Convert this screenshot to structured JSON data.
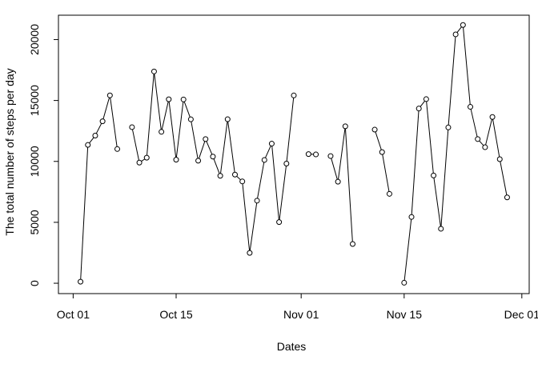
{
  "chart_data": {
    "type": "line",
    "title": "",
    "xlabel": "Dates",
    "ylabel": "The total number of steps per day",
    "x_tick_labels": [
      {
        "date": "2012-10-01",
        "label": "Oct 01"
      },
      {
        "date": "2012-10-15",
        "label": "Oct 15"
      },
      {
        "date": "2012-11-01",
        "label": "Nov 01"
      },
      {
        "date": "2012-11-15",
        "label": "Nov 15"
      },
      {
        "date": "2012-12-01",
        "label": "Dec 01"
      }
    ],
    "y_ticks": [
      0,
      5000,
      10000,
      15000,
      20000
    ],
    "xlim": [
      "2012-09-29",
      "2012-12-02"
    ],
    "ylim": [
      -850,
      22000
    ],
    "marker": "open-circle",
    "line_color": "#000000",
    "grid": false,
    "series": [
      {
        "points": [
          [
            "2012-10-02",
            126
          ],
          [
            "2012-10-03",
            11352
          ],
          [
            "2012-10-04",
            12116
          ],
          [
            "2012-10-05",
            13294
          ],
          [
            "2012-10-06",
            15420
          ],
          [
            "2012-10-07",
            11015
          ],
          [
            "2012-10-08",
            null
          ],
          [
            "2012-10-09",
            12811
          ],
          [
            "2012-10-10",
            9900
          ],
          [
            "2012-10-11",
            10304
          ],
          [
            "2012-10-12",
            17382
          ],
          [
            "2012-10-13",
            12426
          ],
          [
            "2012-10-14",
            15098
          ],
          [
            "2012-10-15",
            10139
          ],
          [
            "2012-10-16",
            15084
          ],
          [
            "2012-10-17",
            13452
          ],
          [
            "2012-10-18",
            10056
          ],
          [
            "2012-10-19",
            11829
          ],
          [
            "2012-10-20",
            10395
          ],
          [
            "2012-10-21",
            8821
          ],
          [
            "2012-10-22",
            13460
          ],
          [
            "2012-10-23",
            8918
          ],
          [
            "2012-10-24",
            8355
          ],
          [
            "2012-10-25",
            2492
          ],
          [
            "2012-10-26",
            6778
          ],
          [
            "2012-10-27",
            10119
          ],
          [
            "2012-10-28",
            11458
          ],
          [
            "2012-10-29",
            5018
          ],
          [
            "2012-10-30",
            9819
          ],
          [
            "2012-10-31",
            15414
          ],
          [
            "2012-11-01",
            null
          ],
          [
            "2012-11-02",
            10600
          ],
          [
            "2012-11-03",
            10571
          ],
          [
            "2012-11-04",
            null
          ],
          [
            "2012-11-05",
            10439
          ],
          [
            "2012-11-06",
            8334
          ],
          [
            "2012-11-07",
            12883
          ],
          [
            "2012-11-08",
            3219
          ],
          [
            "2012-11-09",
            null
          ],
          [
            "2012-11-10",
            null
          ],
          [
            "2012-11-11",
            12608
          ],
          [
            "2012-11-12",
            10765
          ],
          [
            "2012-11-13",
            7336
          ],
          [
            "2012-11-14",
            null
          ],
          [
            "2012-11-15",
            41
          ],
          [
            "2012-11-16",
            5441
          ],
          [
            "2012-11-17",
            14339
          ],
          [
            "2012-11-18",
            15110
          ],
          [
            "2012-11-19",
            8841
          ],
          [
            "2012-11-20",
            4472
          ],
          [
            "2012-11-21",
            12787
          ],
          [
            "2012-11-22",
            20427
          ],
          [
            "2012-11-23",
            21194
          ],
          [
            "2012-11-24",
            14478
          ],
          [
            "2012-11-25",
            11834
          ],
          [
            "2012-11-26",
            11162
          ],
          [
            "2012-11-27",
            13646
          ],
          [
            "2012-11-28",
            10183
          ],
          [
            "2012-11-29",
            7047
          ]
        ]
      }
    ]
  }
}
